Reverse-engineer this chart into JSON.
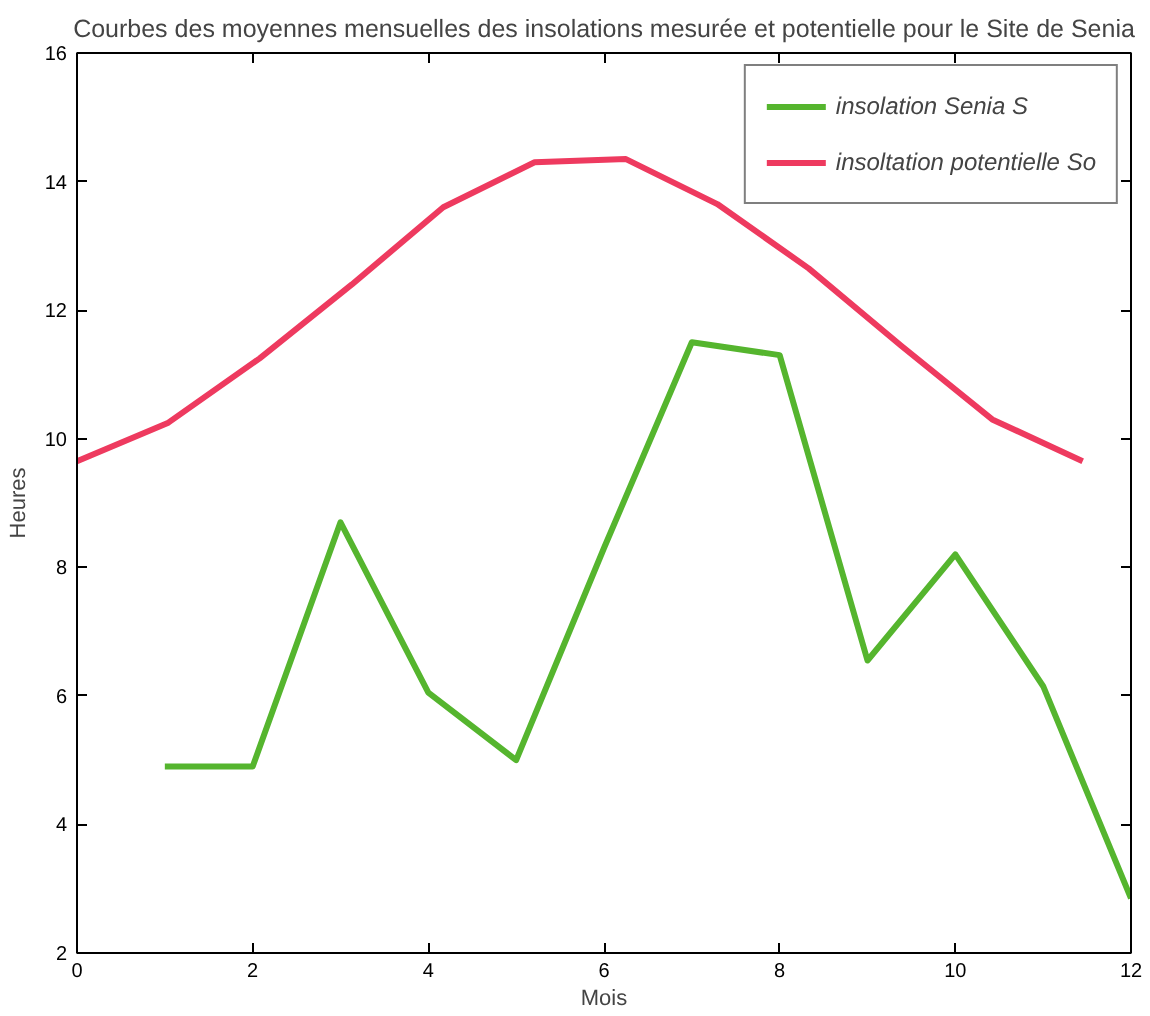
{
  "chart_data": {
    "type": "line",
    "title": "Courbes des moyennes mensuelles des insolations mesurée et potentielle pour le Site de Senia",
    "xlabel": "Mois",
    "ylabel": "Heures",
    "xlim": [
      0,
      12
    ],
    "ylim": [
      2,
      16
    ],
    "xticks": [
      0,
      2,
      4,
      6,
      8,
      10,
      12
    ],
    "yticks": [
      2,
      4,
      6,
      8,
      10,
      12,
      14,
      16
    ],
    "grid": false,
    "legend": "top right",
    "line_style": "solid",
    "series": [
      {
        "name": "insolation Senia S",
        "color": "#55b52e",
        "x": [
          1,
          2,
          3,
          4,
          5,
          6,
          7,
          8,
          9,
          10,
          11,
          12
        ],
        "values": [
          4.9,
          4.9,
          8.7,
          6.05,
          5.0,
          8.3,
          11.5,
          11.3,
          6.55,
          8.2,
          6.15,
          2.85
        ]
      },
      {
        "name": "insoltation potentielle So",
        "color": "#ee3a5f",
        "x": [
          0,
          1.04,
          2.08,
          3.13,
          4.17,
          5.21,
          6.25,
          7.29,
          8.33,
          9.38,
          10.42,
          11.45
        ],
        "values": [
          9.65,
          10.25,
          11.25,
          12.4,
          13.6,
          14.3,
          14.35,
          13.65,
          12.65,
          11.45,
          10.3,
          9.65
        ]
      }
    ]
  }
}
